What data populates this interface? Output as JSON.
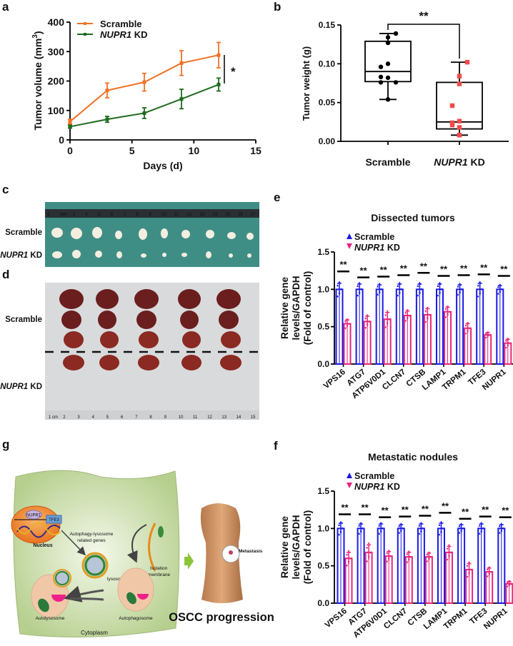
{
  "panel_labels": {
    "a": "a",
    "b": "b",
    "c": "c",
    "d": "d",
    "e": "e",
    "f": "f",
    "g": "g"
  },
  "colors": {
    "scramble_line": "#f07225",
    "kd_line": "#1e6b1e",
    "box_scramble": "#000000",
    "box_kd": "#f04a4a",
    "bar_scramble": "#1a1ae6",
    "bar_kd": "#e8257a"
  },
  "chart_data": [
    {
      "id": "a",
      "type": "line",
      "xlabel": "Days (d)",
      "ylabel": "Tumor volume (mm",
      "ylabel_sup": "3",
      "ylabel_close": ")",
      "xlim": [
        0,
        15
      ],
      "ylim": [
        0,
        400
      ],
      "xticks": [
        "0",
        "5",
        "10",
        "15"
      ],
      "yticks": [
        "0",
        "100",
        "200",
        "300",
        "400"
      ],
      "x": [
        0,
        3,
        6,
        9,
        12
      ],
      "series": [
        {
          "name": "Scramble",
          "values": [
            62,
            168,
            196,
            261,
            288
          ],
          "errors": [
            8,
            25,
            30,
            42,
            43
          ]
        },
        {
          "name_gene": "NUPR1",
          "name_suffix": "KD",
          "values": [
            45,
            70,
            91,
            139,
            188
          ],
          "errors": [
            5,
            10,
            18,
            33,
            22
          ]
        }
      ],
      "annotation": "*",
      "legend": "top-left"
    },
    {
      "id": "b",
      "type": "box",
      "ylabel": "Tumor  weight (g)",
      "ylim": [
        0,
        0.15
      ],
      "yticks": [
        "0.00",
        "0.05",
        "0.10",
        "0.15"
      ],
      "categories": [
        {
          "label": "Scramble"
        },
        {
          "gene": "NUPR1",
          "suffix": "KD"
        }
      ],
      "groups": [
        {
          "points": [
            0.139,
            0.134,
            0.127,
            0.096,
            0.1,
            0.083,
            0.076,
            0.082,
            0.076,
            0.054
          ],
          "min": 0.054,
          "q1": 0.077,
          "median": 0.09,
          "q3": 0.129,
          "max": 0.139
        },
        {
          "points": [
            0.102,
            0.084,
            0.074,
            0.046,
            0.026,
            0.024,
            0.021,
            0.018,
            0.008,
            0.008
          ],
          "min": 0.008,
          "q1": 0.016,
          "median": 0.025,
          "q3": 0.076,
          "max": 0.102
        }
      ],
      "annotation": "**"
    },
    {
      "id": "e",
      "type": "bar",
      "title": "Dissected tumors",
      "ylabel_lines": [
        "Relative gene",
        "levels/GAPDH",
        "(Fold of control)"
      ],
      "ylim": [
        0,
        1.5
      ],
      "yticks": [
        "0.0",
        "0.5",
        "1.0",
        "1.5"
      ],
      "categories": [
        "VPS16",
        "ATG7",
        "ATP6V0D1",
        "CLCN7",
        "CTSB",
        "LAMP1",
        "TRPM1",
        "TFE3",
        "NUPR1"
      ],
      "legend": {
        "scramble": "Scramble",
        "kd_gene": "NUPR1",
        "kd_suffix": "KD"
      },
      "series": [
        {
          "name": "Scramble",
          "values": [
            1,
            1,
            1,
            1,
            1,
            1,
            1,
            1,
            1
          ],
          "errors": [
            0.08,
            0.07,
            0.06,
            0.07,
            0.07,
            0.07,
            0.06,
            0.08,
            0.05
          ]
        },
        {
          "name": "NUPR1 KD",
          "values": [
            0.54,
            0.57,
            0.6,
            0.65,
            0.66,
            0.7,
            0.48,
            0.39,
            0.28
          ],
          "errors": [
            0.05,
            0.07,
            0.09,
            0.06,
            0.08,
            0.06,
            0.06,
            0.03,
            0.05
          ]
        }
      ],
      "significance": [
        "**",
        "**",
        "**",
        "**",
        "**",
        "**",
        "**",
        "**",
        "**"
      ],
      "sig_levels": [
        1.24,
        1.16,
        1.17,
        1.19,
        1.22,
        1.18,
        1.19,
        1.2,
        1.18
      ]
    },
    {
      "id": "f",
      "type": "bar",
      "title": "Metastatic nodules",
      "ylabel_lines": [
        "Relative gene",
        "levels/GAPDH",
        "(Fold of control)"
      ],
      "ylim": [
        0,
        1.5
      ],
      "yticks": [
        "0.0",
        "0.5",
        "1.0",
        "1.5"
      ],
      "categories": [
        "VPS16",
        "ATG7",
        "ATP6V0D1",
        "CLCN7",
        "CTSB",
        "LAMP1",
        "TRPM1",
        "TFE3",
        "NUPR1"
      ],
      "legend": {
        "scramble": "Scramble",
        "kd_gene": "NUPR1",
        "kd_suffix": "KD"
      },
      "series": [
        {
          "name": "Scramble",
          "values": [
            1,
            1,
            1,
            1,
            1,
            1,
            1,
            1,
            1
          ],
          "errors": [
            0.07,
            0.06,
            0.06,
            0.05,
            0.06,
            0.07,
            0.05,
            0.06,
            0.05
          ]
        },
        {
          "name": "NUPR1 KD",
          "values": [
            0.6,
            0.68,
            0.63,
            0.62,
            0.62,
            0.68,
            0.45,
            0.42,
            0.26
          ],
          "errors": [
            0.08,
            0.1,
            0.06,
            0.06,
            0.05,
            0.08,
            0.08,
            0.05,
            0.03
          ]
        }
      ],
      "significance": [
        "**",
        "**",
        "**",
        "**",
        "**",
        "**",
        "**",
        "**",
        "**"
      ],
      "sig_levels": [
        1.19,
        1.19,
        1.15,
        1.16,
        1.17,
        1.21,
        1.13,
        1.16,
        1.15
      ]
    }
  ],
  "photo_c": {
    "row_scramble": "Scramble",
    "row_kd_gene": "NUPR1",
    "row_kd_suffix": "KD",
    "ruler_labels": [
      "2",
      "mm",
      "3",
      "4",
      "5",
      "6",
      "7",
      "8",
      "9",
      "10",
      "11",
      "12",
      "13",
      "14",
      "15",
      "16",
      "17"
    ]
  },
  "photo_d": {
    "row_scramble": "Scramble",
    "row_kd_gene": "NUPR1",
    "row_kd_suffix": "KD",
    "ruler_labels": [
      "1 cm",
      "2",
      "3",
      "4",
      "5",
      "6",
      "7",
      "8",
      "9",
      "10",
      "11",
      "12",
      "13",
      "14",
      "15"
    ]
  },
  "diagram_g": {
    "nupr1": "NUPR1",
    "tfe3": "TFE3",
    "nucleus": "Nucleus",
    "genes_line1": "Autophagy-lysosome",
    "genes_line2": "related genes",
    "lysosome": "lysosome",
    "isolation_line1": "Isolation",
    "isolation_line2": "membrane",
    "autolysosome": "Autolysosome",
    "autophagosome": "Autophagosome",
    "cytoplasm": "Cytoplasm",
    "metastasis": "Metastasis",
    "progression": "OSCC progression"
  }
}
